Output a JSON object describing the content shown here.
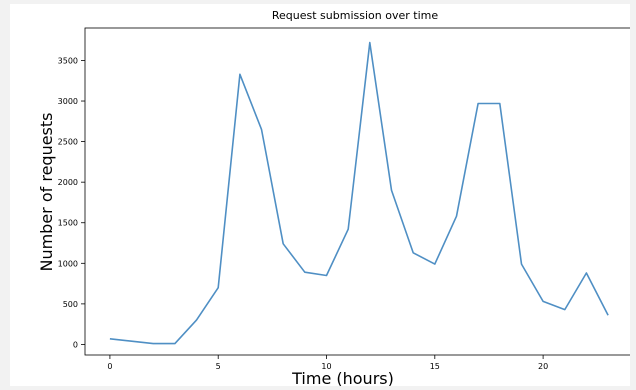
{
  "chart_data": {
    "type": "line",
    "title": "Request submission over time",
    "xlabel": "Time (hours)",
    "ylabel": "Number of requests",
    "x": [
      0,
      1,
      2,
      3,
      4,
      5,
      6,
      7,
      8,
      9,
      10,
      11,
      12,
      13,
      14,
      15,
      16,
      17,
      18,
      19,
      20,
      21,
      22,
      23
    ],
    "series": [
      {
        "values": [
          70,
          40,
          10,
          10,
          300,
          700,
          3330,
          2650,
          1240,
          890,
          850,
          1420,
          3720,
          1900,
          1130,
          990,
          1580,
          2970,
          2970,
          990,
          530,
          430,
          880,
          360
        ],
        "color": "#4f8fc4"
      }
    ],
    "xlim": [
      -1.15,
      24.15
    ],
    "ylim": [
      -130,
      3900
    ],
    "xticks": [
      "0",
      "5",
      "10",
      "15",
      "20"
    ],
    "xtick_values": [
      0,
      5,
      10,
      15,
      20
    ],
    "yticks": [
      "0",
      "500",
      "1000",
      "1500",
      "2000",
      "2500",
      "3000",
      "3500"
    ],
    "ytick_values": [
      0,
      500,
      1000,
      1500,
      2000,
      2500,
      3000,
      3500
    ],
    "grid": false
  }
}
